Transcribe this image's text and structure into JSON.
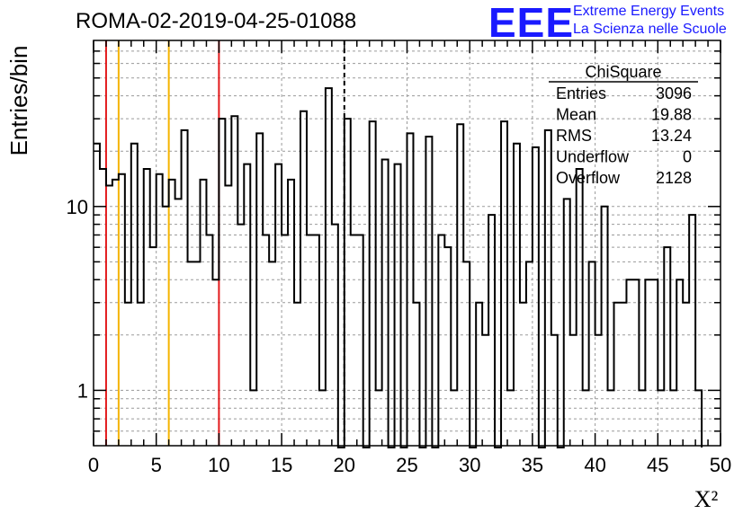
{
  "title": "ROMA-02-2019-04-25-01088",
  "logo": {
    "mark": "EEE",
    "line1": "Extreme Energy Events",
    "line2": "La Scienza nelle Scuole",
    "color": "#1a1aff"
  },
  "stats": {
    "name": "ChiSquare",
    "rows": [
      {
        "label": "Entries",
        "value": "3096"
      },
      {
        "label": "Mean",
        "value": "19.88"
      },
      {
        "label": "RMS",
        "value": "13.24"
      },
      {
        "label": "Underflow",
        "value": "0"
      },
      {
        "label": "Overflow",
        "value": "2128"
      }
    ]
  },
  "chart_data": {
    "type": "histogram",
    "xlabel": "X²",
    "ylabel": "Entries/bin",
    "xlim": [
      0,
      50
    ],
    "ylim": [
      0.5,
      80
    ],
    "yscale": "log",
    "grid": true,
    "bin_width": 0.5,
    "bin_start": 0,
    "xticks": [
      0,
      5,
      10,
      15,
      20,
      25,
      30,
      35,
      40,
      45,
      50
    ],
    "yticks": [
      1,
      10
    ],
    "counts": [
      22,
      16,
      13,
      14,
      15,
      3,
      22,
      3,
      16,
      6,
      15,
      10,
      14,
      11,
      26,
      5,
      5,
      14,
      7,
      4,
      30,
      13,
      31,
      8,
      17,
      1,
      25,
      7,
      5,
      17,
      7,
      14,
      3,
      33,
      7,
      7,
      1,
      44,
      8,
      0,
      30,
      7,
      7,
      0,
      29,
      1,
      18,
      0,
      17,
      0,
      25,
      3,
      0,
      24,
      0,
      7,
      6,
      1,
      28,
      5,
      0,
      3,
      2,
      9,
      0,
      29,
      1,
      22,
      3,
      5,
      21,
      0,
      26,
      2,
      0,
      11,
      2,
      16,
      1,
      5,
      2,
      10,
      1,
      3,
      3,
      4,
      4,
      1,
      4,
      4,
      1,
      6,
      1,
      4,
      3,
      9,
      1
    ],
    "vlines": [
      {
        "x": 1,
        "color": "#e31a1c",
        "style": "solid"
      },
      {
        "x": 2,
        "color": "#f5b400",
        "style": "solid"
      },
      {
        "x": 6,
        "color": "#f5b400",
        "style": "solid"
      },
      {
        "x": 10,
        "color": "#e31a1c",
        "style": "solid"
      },
      {
        "x": 20,
        "color": "#000000",
        "style": "dashed"
      }
    ]
  }
}
